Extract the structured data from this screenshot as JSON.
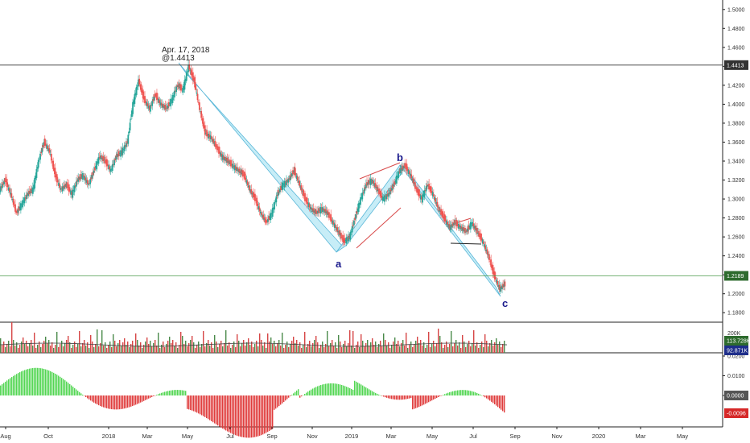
{
  "chart_data": [
    {
      "type": "line",
      "price_axis": {
        "ylim": [
          1.17,
          1.51
        ],
        "ticks": [
          "1.1800",
          "1.2000",
          "1.2200",
          "1.2400",
          "1.2600",
          "1.2800",
          "1.3000",
          "1.3200",
          "1.3400",
          "1.3600",
          "1.3800",
          "1.4000",
          "1.4200",
          "1.4400",
          "1.4600",
          "1.4800",
          "1.5000"
        ]
      },
      "x_labels": [
        "Aug",
        "Oct",
        "2018",
        "Mar",
        "May",
        "Jul",
        "Sep",
        "Nov",
        "2019",
        "Mar",
        "May",
        "Jul",
        "Sep",
        "Nov",
        "2020",
        "Mar",
        "May"
      ],
      "series": [
        {
          "values": [
            [
              0,
              1.31
            ],
            [
              2,
              1.32
            ],
            [
              4,
              1.305
            ],
            [
              6,
              1.285
            ],
            [
              8,
              1.295
            ],
            [
              10,
              1.305
            ],
            [
              12,
              1.31
            ],
            [
              14,
              1.34
            ],
            [
              16,
              1.36
            ],
            [
              18,
              1.35
            ],
            [
              20,
              1.325
            ],
            [
              22,
              1.31
            ],
            [
              24,
              1.315
            ],
            [
              26,
              1.305
            ],
            [
              28,
              1.32
            ],
            [
              30,
              1.325
            ],
            [
              32,
              1.315
            ],
            [
              34,
              1.33
            ],
            [
              36,
              1.345
            ],
            [
              38,
              1.34
            ],
            [
              40,
              1.33
            ],
            [
              42,
              1.345
            ],
            [
              44,
              1.35
            ],
            [
              46,
              1.36
            ],
            [
              48,
              1.4
            ],
            [
              50,
              1.425
            ],
            [
              52,
              1.405
            ],
            [
              54,
              1.395
            ],
            [
              56,
              1.41
            ],
            [
              58,
              1.4
            ],
            [
              60,
              1.395
            ],
            [
              62,
              1.405
            ],
            [
              64,
              1.42
            ],
            [
              66,
              1.415
            ],
            [
              68,
              1.44
            ],
            [
              70,
              1.425
            ],
            [
              72,
              1.395
            ],
            [
              74,
              1.37
            ],
            [
              76,
              1.365
            ],
            [
              78,
              1.355
            ],
            [
              80,
              1.345
            ],
            [
              82,
              1.34
            ],
            [
              84,
              1.335
            ],
            [
              86,
              1.33
            ],
            [
              88,
              1.325
            ],
            [
              90,
              1.31
            ],
            [
              92,
              1.3
            ],
            [
              94,
              1.285
            ],
            [
              96,
              1.275
            ],
            [
              98,
              1.285
            ],
            [
              100,
              1.305
            ],
            [
              102,
              1.315
            ],
            [
              104,
              1.32
            ],
            [
              106,
              1.33
            ],
            [
              108,
              1.315
            ],
            [
              110,
              1.3
            ],
            [
              112,
              1.29
            ],
            [
              114,
              1.285
            ],
            [
              116,
              1.29
            ],
            [
              118,
              1.285
            ],
            [
              120,
              1.275
            ],
            [
              122,
              1.265
            ],
            [
              124,
              1.255
            ],
            [
              126,
              1.26
            ],
            [
              128,
              1.28
            ],
            [
              130,
              1.3
            ],
            [
              132,
              1.315
            ],
            [
              134,
              1.32
            ],
            [
              136,
              1.31
            ],
            [
              138,
              1.3
            ],
            [
              140,
              1.305
            ],
            [
              142,
              1.315
            ],
            [
              144,
              1.33
            ],
            [
              146,
              1.335
            ],
            [
              148,
              1.325
            ],
            [
              150,
              1.31
            ],
            [
              152,
              1.3
            ],
            [
              154,
              1.315
            ],
            [
              156,
              1.305
            ],
            [
              158,
              1.29
            ],
            [
              160,
              1.28
            ],
            [
              162,
              1.27
            ],
            [
              164,
              1.275
            ],
            [
              166,
              1.27
            ],
            [
              168,
              1.265
            ],
            [
              170,
              1.275
            ],
            [
              172,
              1.265
            ],
            [
              174,
              1.255
            ],
            [
              176,
              1.24
            ],
            [
              178,
              1.22
            ],
            [
              180,
              1.205
            ],
            [
              182,
              1.21
            ]
          ]
        },
        {
          "name": "",
          "values": [
            1.31,
            1.32,
            1.305,
            1.285,
            1.29,
            1.3,
            1.305,
            1.335,
            1.36,
            1.34,
            1.32,
            1.31,
            1.315,
            1.305,
            1.32,
            1.325,
            1.315,
            1.33,
            1.345,
            1.34,
            1.33,
            1.345,
            1.35,
            1.36,
            1.4,
            1.42,
            1.405,
            1.395,
            1.41,
            1.4,
            1.395,
            1.405,
            1.415,
            1.41,
            1.44,
            1.425
          ]
        }
      ],
      "last_value": 1.2189,
      "resistance": 1.4413,
      "support": 1.2189,
      "annotations": [
        {
          "text": "Apr. 17, 2018"
        },
        {
          "text": "@1.4413"
        },
        {
          "text": "a"
        },
        {
          "text": "b"
        },
        {
          "text": "c"
        }
      ],
      "tags": {
        "high": "1.4413",
        "last": "1.2189"
      },
      "colors": {
        "up": "#26a69a",
        "down": "#ef5350",
        "channel": "#b9e9f5",
        "channel_line": "#5ab7d8",
        "triangle": "#d84a4a"
      }
    },
    {
      "type": "bar",
      "volume_axis": {
        "ticks": [
          "200K"
        ]
      },
      "volume_tags": {
        "vol": "113.728K",
        "ma": "92.871K"
      }
    },
    {
      "type": "bar",
      "osc_axis": {
        "ticks": [
          "0.0200",
          "0.0100",
          "0.0000"
        ]
      },
      "osc_tags": {
        "zero": "0.0000",
        "last": "-0.0096"
      }
    }
  ]
}
